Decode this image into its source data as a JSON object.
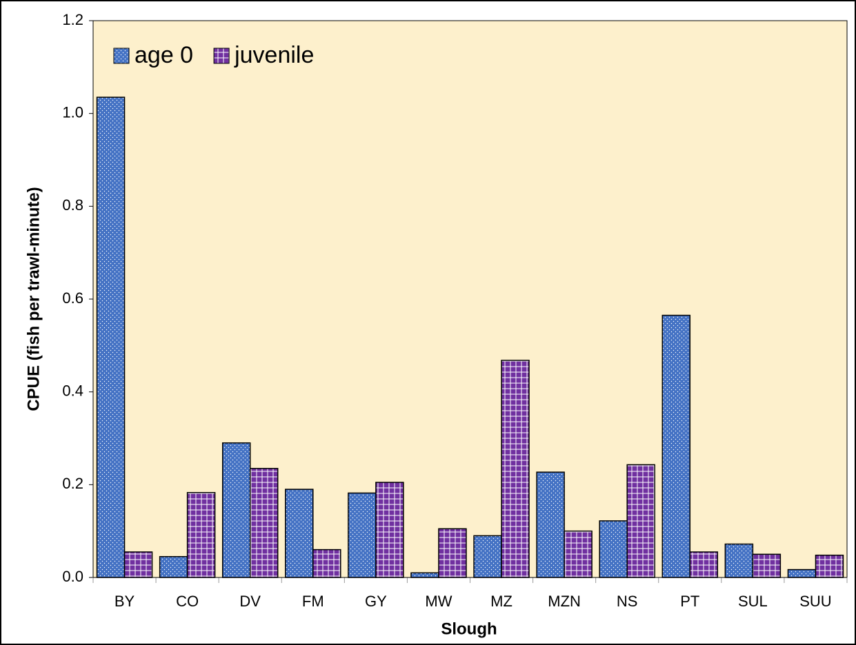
{
  "chart_data": {
    "type": "bar",
    "x_label": "Slough",
    "y_label": "CPUE (fish per trawl-minute)",
    "categories": [
      "BY",
      "CO",
      "DV",
      "FM",
      "GY",
      "MW",
      "MZ",
      "MZN",
      "NS",
      "PT",
      "SUL",
      "SUU"
    ],
    "series": [
      {
        "name": "age 0",
        "color": "#4472c4",
        "values": [
          1.035,
          0.045,
          0.29,
          0.19,
          0.182,
          0.01,
          0.09,
          0.227,
          0.122,
          0.565,
          0.072,
          0.017
        ]
      },
      {
        "name": "juvenile",
        "color": "#7030a0",
        "values": [
          0.055,
          0.183,
          0.235,
          0.06,
          0.205,
          0.105,
          0.468,
          0.1,
          0.243,
          0.055,
          0.05,
          0.048
        ]
      }
    ],
    "ylim": [
      0,
      1.2
    ],
    "yticks": [
      {
        "value": 0,
        "label": "0.0"
      },
      0.2,
      0.4,
      0.6,
      0.8,
      {
        "value": 1,
        "label": "1.0"
      },
      1.2
    ],
    "legend": "top-left",
    "plot_background": "#fdf0cc"
  }
}
